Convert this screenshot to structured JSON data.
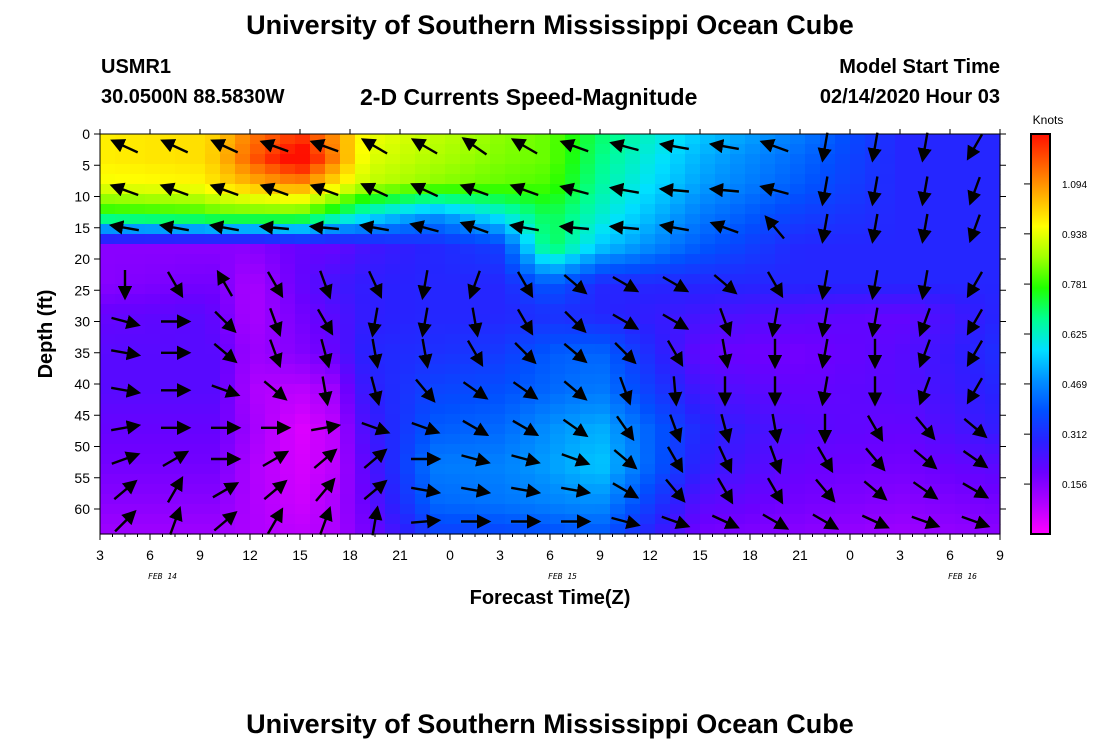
{
  "header": {
    "title": "University of Southern Mississippi Ocean Cube",
    "station_id": "USMR1",
    "station_coords": "30.0500N 88.5830W",
    "model_start_label": "Model Start Time",
    "model_start_value": "02/14/2020 Hour 03"
  },
  "footer": {
    "title": "University of Southern Mississippi Ocean Cube"
  },
  "chart_data": {
    "type": "heatmap",
    "title": "2-D Currents Speed-Magnitude",
    "xlabel": "Forecast Time(Z)",
    "ylabel": "Depth (ft)",
    "x_tick_labels": [
      "3",
      "6",
      "9",
      "12",
      "15",
      "18",
      "21",
      "0",
      "3",
      "6",
      "9",
      "12",
      "15",
      "18",
      "21",
      "0",
      "3",
      "6",
      "9"
    ],
    "date_labels": [
      {
        "label": "FEB 14",
        "hour_index": 5
      },
      {
        "label": "FEB 15",
        "hour_index": 37
      },
      {
        "label": "FEB 16",
        "hour_index": 69
      }
    ],
    "xlim_hours_from_start": [
      0,
      54
    ],
    "y_ticks": [
      0,
      5,
      10,
      15,
      20,
      25,
      30,
      35,
      40,
      45,
      50,
      55,
      60
    ],
    "ylim": [
      0,
      64
    ],
    "colorbar": {
      "label": "Knots",
      "ticks": [
        1.094,
        0.938,
        0.781,
        0.625,
        0.469,
        0.312,
        0.156
      ],
      "range": [
        0.0,
        1.25
      ],
      "colors": [
        "#ff00ff",
        "#b000ff",
        "#6b00ff",
        "#2a20ff",
        "#0050ff",
        "#0090ff",
        "#00e0ff",
        "#00ff90",
        "#20ff00",
        "#a0ff00",
        "#ffff00",
        "#ffb000",
        "#ff6000",
        "#ff1000"
      ]
    },
    "depths": [
      0,
      4,
      8,
      13,
      18,
      24,
      29,
      35,
      41,
      47,
      53,
      59,
      64
    ],
    "times": [
      0,
      6,
      7,
      9,
      12,
      14,
      16,
      20,
      24,
      27,
      30,
      36,
      42,
      48,
      54
    ],
    "speed": [
      [
        0.98,
        1.0,
        1.02,
        1.12,
        1.2,
        1.1,
        0.95,
        0.9,
        0.85,
        0.82,
        0.7,
        0.55,
        0.45,
        0.3,
        0.3
      ],
      [
        0.98,
        1.0,
        1.03,
        1.15,
        1.3,
        1.12,
        0.93,
        0.88,
        0.84,
        0.82,
        0.68,
        0.52,
        0.42,
        0.3,
        0.3
      ],
      [
        0.95,
        0.97,
        1.0,
        1.05,
        1.1,
        1.0,
        0.9,
        0.85,
        0.82,
        0.8,
        0.66,
        0.5,
        0.4,
        0.3,
        0.3
      ],
      [
        0.75,
        0.78,
        0.8,
        0.8,
        0.8,
        0.7,
        0.6,
        0.48,
        0.6,
        0.72,
        0.62,
        0.45,
        0.35,
        0.3,
        0.3
      ],
      [
        0.15,
        0.15,
        0.15,
        0.15,
        0.2,
        0.2,
        0.25,
        0.3,
        0.35,
        0.72,
        0.55,
        0.4,
        0.3,
        0.3,
        0.3
      ],
      [
        0.15,
        0.18,
        0.18,
        0.1,
        0.2,
        0.25,
        0.28,
        0.3,
        0.3,
        0.4,
        0.3,
        0.3,
        0.3,
        0.3,
        0.3
      ],
      [
        0.2,
        0.22,
        0.2,
        0.1,
        0.18,
        0.22,
        0.28,
        0.3,
        0.3,
        0.32,
        0.3,
        0.25,
        0.22,
        0.2,
        0.3
      ],
      [
        0.22,
        0.22,
        0.22,
        0.12,
        0.16,
        0.2,
        0.3,
        0.32,
        0.34,
        0.4,
        0.42,
        0.2,
        0.18,
        0.22,
        0.32
      ],
      [
        0.22,
        0.22,
        0.22,
        0.1,
        0.08,
        0.12,
        0.28,
        0.36,
        0.38,
        0.42,
        0.45,
        0.25,
        0.2,
        0.22,
        0.3
      ],
      [
        0.2,
        0.2,
        0.2,
        0.12,
        0.04,
        0.08,
        0.25,
        0.4,
        0.42,
        0.48,
        0.52,
        0.3,
        0.22,
        0.2,
        0.28
      ],
      [
        0.18,
        0.18,
        0.18,
        0.1,
        0.05,
        0.08,
        0.22,
        0.45,
        0.46,
        0.5,
        0.55,
        0.28,
        0.2,
        0.18,
        0.22
      ],
      [
        0.15,
        0.15,
        0.15,
        0.1,
        0.06,
        0.1,
        0.2,
        0.42,
        0.44,
        0.46,
        0.48,
        0.22,
        0.18,
        0.15,
        0.18
      ],
      [
        0.12,
        0.12,
        0.12,
        0.1,
        0.08,
        0.1,
        0.18,
        0.35,
        0.36,
        0.38,
        0.4,
        0.18,
        0.15,
        0.12,
        0.15
      ]
    ],
    "vector_times": [
      1.5,
      4.5,
      7.5,
      10.5,
      13.5,
      16.5,
      19.5,
      22.5,
      25.5,
      28.5,
      31.5,
      34.5,
      37.5,
      40.5,
      43.5,
      46.5,
      49.5,
      52.5
    ],
    "vector_depths": [
      2,
      9,
      15,
      24,
      30,
      35,
      41,
      47,
      52,
      57,
      62
    ],
    "vector_angles_deg": [
      [
        205,
        205,
        205,
        200,
        200,
        210,
        210,
        215,
        210,
        200,
        195,
        190,
        190,
        200,
        100,
        100,
        100,
        120
      ],
      [
        200,
        200,
        200,
        200,
        200,
        205,
        205,
        200,
        200,
        195,
        190,
        185,
        185,
        195,
        100,
        100,
        100,
        110
      ],
      [
        190,
        190,
        190,
        185,
        185,
        190,
        195,
        200,
        190,
        185,
        185,
        190,
        200,
        230,
        100,
        100,
        100,
        110
      ],
      [
        90,
        60,
        240,
        60,
        70,
        65,
        100,
        110,
        60,
        40,
        30,
        30,
        40,
        60,
        100,
        100,
        100,
        120
      ],
      [
        15,
        0,
        45,
        70,
        60,
        100,
        100,
        80,
        60,
        45,
        30,
        30,
        70,
        100,
        100,
        100,
        110,
        120
      ],
      [
        10,
        0,
        40,
        70,
        75,
        80,
        80,
        60,
        45,
        40,
        45,
        60,
        80,
        90,
        100,
        90,
        110,
        120
      ],
      [
        10,
        0,
        20,
        40,
        80,
        75,
        50,
        35,
        35,
        40,
        70,
        85,
        90,
        90,
        100,
        90,
        110,
        120
      ],
      [
        -10,
        0,
        0,
        0,
        -10,
        20,
        20,
        30,
        30,
        35,
        55,
        70,
        75,
        80,
        90,
        60,
        50,
        40
      ],
      [
        -20,
        -30,
        0,
        -30,
        -40,
        -40,
        0,
        15,
        15,
        20,
        40,
        60,
        65,
        70,
        60,
        50,
        40,
        35
      ],
      [
        -40,
        -60,
        -30,
        -40,
        -50,
        -40,
        10,
        10,
        10,
        10,
        30,
        50,
        60,
        60,
        50,
        40,
        35,
        30
      ],
      [
        -45,
        -70,
        -40,
        -60,
        -70,
        -80,
        -5,
        0,
        0,
        0,
        15,
        20,
        25,
        30,
        30,
        25,
        20,
        20
      ]
    ]
  }
}
